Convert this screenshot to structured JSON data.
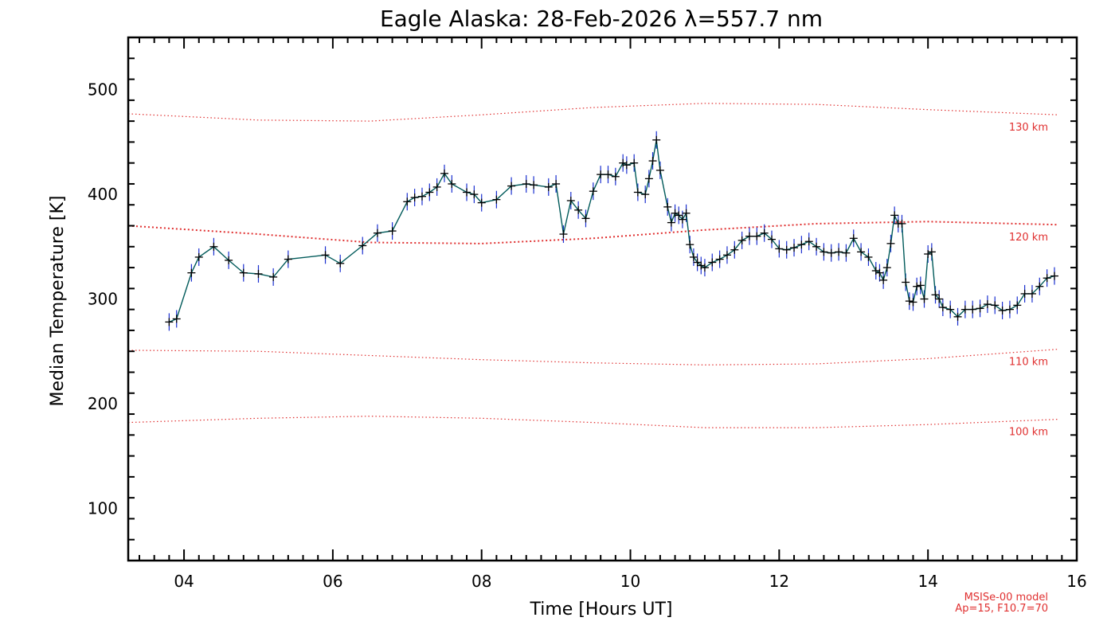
{
  "chart_data": {
    "type": "line",
    "title": "Eagle Alaska: 28-Feb-2026 λ=557.7 nm",
    "xlabel": "Time [Hours UT]",
    "ylabel": "Median Temperature [K]",
    "xlim": [
      3.25,
      16.0
    ],
    "ylim": [
      50,
      550
    ],
    "x_ticks": [
      4,
      6,
      8,
      10,
      12,
      14,
      16
    ],
    "x_tick_labels": [
      "04",
      "06",
      "08",
      "10",
      "12",
      "14",
      "16"
    ],
    "y_ticks": [
      100,
      200,
      300,
      400,
      500
    ],
    "y_tick_labels": [
      "100",
      "200",
      "300",
      "400",
      "500"
    ],
    "series": [
      {
        "name": "Median Temperature",
        "color": "#005a5a",
        "marker": "+",
        "error_color": "#1a2fd0",
        "points": [
          [
            3.8,
            278
          ],
          [
            3.9,
            281
          ],
          [
            4.1,
            325
          ],
          [
            4.2,
            340
          ],
          [
            4.4,
            350
          ],
          [
            4.6,
            337
          ],
          [
            4.8,
            325
          ],
          [
            5.0,
            324
          ],
          [
            5.2,
            321
          ],
          [
            5.4,
            338
          ],
          [
            5.9,
            342
          ],
          [
            6.1,
            334
          ],
          [
            6.4,
            351
          ],
          [
            6.6,
            363
          ],
          [
            6.8,
            365
          ],
          [
            7.0,
            393
          ],
          [
            7.1,
            397
          ],
          [
            7.2,
            398
          ],
          [
            7.3,
            402
          ],
          [
            7.4,
            407
          ],
          [
            7.5,
            420
          ],
          [
            7.6,
            410
          ],
          [
            7.8,
            402
          ],
          [
            7.9,
            400
          ],
          [
            8.0,
            392
          ],
          [
            8.2,
            395
          ],
          [
            8.4,
            408
          ],
          [
            8.6,
            410
          ],
          [
            8.7,
            409
          ],
          [
            8.9,
            407
          ],
          [
            9.0,
            410
          ],
          [
            9.1,
            362
          ],
          [
            9.2,
            394
          ],
          [
            9.3,
            385
          ],
          [
            9.4,
            377
          ],
          [
            9.5,
            403
          ],
          [
            9.6,
            419
          ],
          [
            9.7,
            419
          ],
          [
            9.8,
            417
          ],
          [
            9.9,
            430
          ],
          [
            9.95,
            428
          ],
          [
            10.05,
            430
          ],
          [
            10.1,
            402
          ],
          [
            10.2,
            400
          ],
          [
            10.25,
            415
          ],
          [
            10.3,
            432
          ],
          [
            10.35,
            452
          ],
          [
            10.4,
            423
          ],
          [
            10.5,
            388
          ],
          [
            10.55,
            373
          ],
          [
            10.6,
            382
          ],
          [
            10.65,
            380
          ],
          [
            10.7,
            376
          ],
          [
            10.75,
            382
          ],
          [
            10.8,
            352
          ],
          [
            10.85,
            340
          ],
          [
            10.9,
            335
          ],
          [
            10.95,
            332
          ],
          [
            11.0,
            330
          ],
          [
            11.1,
            335
          ],
          [
            11.2,
            338
          ],
          [
            11.3,
            342
          ],
          [
            11.4,
            347
          ],
          [
            11.5,
            356
          ],
          [
            11.6,
            360
          ],
          [
            11.7,
            360
          ],
          [
            11.8,
            363
          ],
          [
            11.9,
            357
          ],
          [
            12.0,
            348
          ],
          [
            12.1,
            347
          ],
          [
            12.2,
            349
          ],
          [
            12.3,
            352
          ],
          [
            12.4,
            355
          ],
          [
            12.5,
            350
          ],
          [
            12.6,
            345
          ],
          [
            12.7,
            344
          ],
          [
            12.8,
            345
          ],
          [
            12.9,
            344
          ],
          [
            13.0,
            358
          ],
          [
            13.1,
            345
          ],
          [
            13.2,
            340
          ],
          [
            13.3,
            327
          ],
          [
            13.35,
            325
          ],
          [
            13.4,
            318
          ],
          [
            13.45,
            330
          ],
          [
            13.5,
            353
          ],
          [
            13.55,
            380
          ],
          [
            13.6,
            372
          ],
          [
            13.65,
            372
          ],
          [
            13.7,
            316
          ],
          [
            13.75,
            298
          ],
          [
            13.8,
            297
          ],
          [
            13.85,
            312
          ],
          [
            13.9,
            313
          ],
          [
            13.95,
            300
          ],
          [
            14.0,
            343
          ],
          [
            14.05,
            345
          ],
          [
            14.1,
            304
          ],
          [
            14.15,
            300
          ],
          [
            14.2,
            292
          ],
          [
            14.3,
            290
          ],
          [
            14.4,
            283
          ],
          [
            14.5,
            290
          ],
          [
            14.6,
            290
          ],
          [
            14.7,
            291
          ],
          [
            14.8,
            295
          ],
          [
            14.9,
            294
          ],
          [
            15.0,
            289
          ],
          [
            15.1,
            290
          ],
          [
            15.2,
            294
          ],
          [
            15.3,
            305
          ],
          [
            15.4,
            305
          ],
          [
            15.5,
            312
          ],
          [
            15.6,
            320
          ],
          [
            15.7,
            322
          ]
        ]
      }
    ],
    "model_lines": [
      {
        "label": "130 km",
        "color": "#e03030",
        "points": [
          [
            3.25,
            477
          ],
          [
            5.0,
            471
          ],
          [
            6.5,
            470
          ],
          [
            8.0,
            476
          ],
          [
            9.5,
            483
          ],
          [
            11.0,
            487
          ],
          [
            12.5,
            486
          ],
          [
            14.0,
            481
          ],
          [
            15.75,
            476
          ]
        ]
      },
      {
        "label": "120 km",
        "color": "#e03030",
        "points": [
          [
            3.25,
            370
          ],
          [
            5.0,
            362
          ],
          [
            6.5,
            354
          ],
          [
            8.0,
            353
          ],
          [
            9.5,
            358
          ],
          [
            11.0,
            366
          ],
          [
            12.5,
            372
          ],
          [
            14.0,
            374
          ],
          [
            15.75,
            371
          ]
        ]
      },
      {
        "label": "110 km",
        "color": "#e03030",
        "points": [
          [
            3.25,
            251
          ],
          [
            5.0,
            250
          ],
          [
            6.5,
            246
          ],
          [
            8.0,
            242
          ],
          [
            9.5,
            239
          ],
          [
            11.0,
            237
          ],
          [
            12.5,
            238
          ],
          [
            14.0,
            243
          ],
          [
            15.75,
            252
          ]
        ]
      },
      {
        "label": "100 km",
        "color": "#e03030",
        "points": [
          [
            3.25,
            182
          ],
          [
            5.0,
            186
          ],
          [
            6.5,
            188
          ],
          [
            8.0,
            186
          ],
          [
            9.5,
            182
          ],
          [
            11.0,
            177
          ],
          [
            12.5,
            177
          ],
          [
            14.0,
            180
          ],
          [
            15.75,
            185
          ]
        ]
      }
    ],
    "footnote_line1": "MSISe-00 model",
    "footnote_line2": "Ap=15, F10.7=70"
  }
}
